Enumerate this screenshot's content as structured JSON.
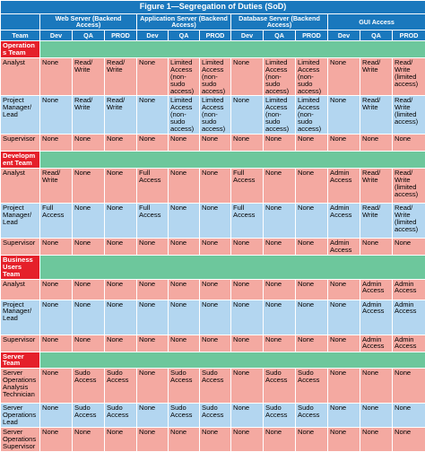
{
  "figure_title": "Figure 1—Segregation of Duties (SoD)",
  "header": {
    "team_label": "Team",
    "groups": [
      "Web Server (Backend Access)",
      "Application Server (Backend Access)",
      "Database Server (Backend Access)",
      "GUI Access"
    ],
    "environments": [
      "Dev",
      "QA",
      "PROD"
    ]
  },
  "sections": [
    {
      "name": "Operations Team",
      "rows": [
        {
          "role": "Analyst",
          "band": "pink",
          "cells": [
            "None",
            "Read/ Write",
            "Read/ Write",
            "None",
            "Limited Access (non-sudo access)",
            "Limited Access (non-sudo access)",
            "None",
            "Limited Access (non-sudo access)",
            "Limited Access (non-sudo access)",
            "None",
            "Read/ Write",
            "Read/ Write (limited access)"
          ]
        },
        {
          "role": "Project Manager/ Lead",
          "band": "blue",
          "cells": [
            "None",
            "Read/ Write",
            "Read/ Write",
            "None",
            "Limited Access (non-sudo access)",
            "Limited Access (non-sudo access)",
            "None",
            "Limited Access (non-sudo access)",
            "Limited Access (non-sudo access)",
            "None",
            "Read/ Write",
            "Read/ Write (limited access)"
          ]
        },
        {
          "role": "Supervisor",
          "band": "pink",
          "cells": [
            "None",
            "None",
            "None",
            "None",
            "None",
            "None",
            "None",
            "None",
            "None",
            "None",
            "None",
            "None"
          ]
        }
      ]
    },
    {
      "name": "Development Team",
      "rows": [
        {
          "role": "Analyst",
          "band": "pink",
          "cells": [
            "Read/ Write",
            "None",
            "None",
            "Full Access",
            "None",
            "None",
            "Full Access",
            "None",
            "None",
            "Admin Access",
            "Read/ Write",
            "Read/ Write (limited access)"
          ]
        },
        {
          "role": "Project Manager/ Lead",
          "band": "blue",
          "cells": [
            "Full Access",
            "None",
            "None",
            "Full Access",
            "None",
            "None",
            "Full Access",
            "None",
            "None",
            "Admin Access",
            "Read/ Write",
            "Read/ Write (limited access)"
          ]
        },
        {
          "role": "Supervisor",
          "band": "pink",
          "cells": [
            "None",
            "None",
            "None",
            "None",
            "None",
            "None",
            "None",
            "None",
            "None",
            "Admin Access",
            "None",
            "None"
          ]
        }
      ]
    },
    {
      "name": "Business Users Team",
      "rows": [
        {
          "role": "Analyst",
          "band": "pink",
          "cells": [
            "None",
            "None",
            "None",
            "None",
            "None",
            "None",
            "None",
            "None",
            "None",
            "None",
            "Admin Access",
            "Admin Access"
          ]
        },
        {
          "role": "Project Manager/ Lead",
          "band": "blue",
          "cells": [
            "None",
            "None",
            "None",
            "None",
            "None",
            "None",
            "None",
            "None",
            "None",
            "None",
            "Admin Access",
            "Admin Access"
          ]
        },
        {
          "role": "Supervisor",
          "band": "pink",
          "cells": [
            "None",
            "None",
            "None",
            "None",
            "None",
            "None",
            "None",
            "None",
            "None",
            "None",
            "Admin Access",
            "Admin Access"
          ]
        }
      ]
    },
    {
      "name": "Server Team",
      "rows": [
        {
          "role": "Server Operations Analysis Technician",
          "band": "pink",
          "cells": [
            "None",
            "Sudo Access",
            "Sudo Access",
            "None",
            "Sudo Access",
            "Sudo Access",
            "None",
            "Sudo Access",
            "Sudo Access",
            "None",
            "None",
            "None"
          ]
        },
        {
          "role": "Server Operations Lead",
          "band": "blue",
          "cells": [
            "None",
            "Sudo Access",
            "Sudo Access",
            "None",
            "Sudo Access",
            "Sudo Access",
            "None",
            "Sudo Access",
            "Sudo Access",
            "None",
            "None",
            "None"
          ]
        },
        {
          "role": "Server Operations Supervisor",
          "band": "pink",
          "cells": [
            "None",
            "None",
            "None",
            "None",
            "None",
            "None",
            "None",
            "None",
            "None",
            "None",
            "None",
            "None"
          ]
        }
      ]
    }
  ],
  "colors": {
    "header_blue": "#1a78bd",
    "section_red": "#e5202a",
    "section_green": "#6dc79c",
    "row_pink": "#f4a9a1",
    "row_blue": "#b3d6f0"
  }
}
